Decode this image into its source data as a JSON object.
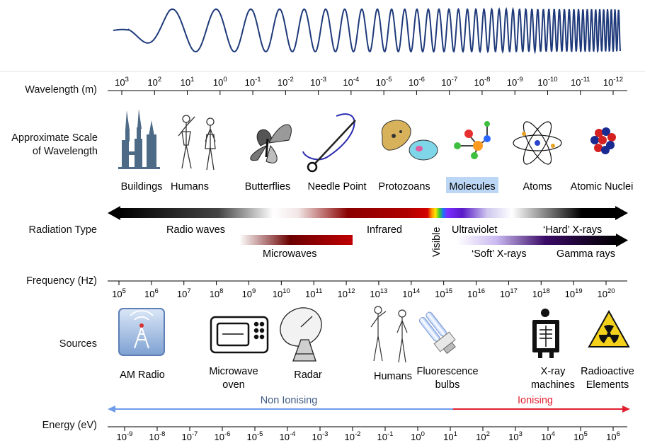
{
  "rows": {
    "wavelength": "Wavelength (m)",
    "scale_line1": "Approximate Scale",
    "scale_line2": "of Wavelength",
    "radiation": "Radiation Type",
    "frequency": "Frequency (Hz)",
    "sources": "Sources",
    "energy": "Energy (eV)"
  },
  "wavelength_exponents": [
    "3",
    "2",
    "1",
    "0",
    "-1",
    "-2",
    "-3",
    "-4",
    "-5",
    "-6",
    "-7",
    "-8",
    "-9",
    "-10",
    "-11",
    "-12"
  ],
  "frequency_exponents": [
    "5",
    "6",
    "7",
    "8",
    "9",
    "10",
    "11",
    "12",
    "13",
    "14",
    "15",
    "16",
    "17",
    "18",
    "19",
    "20"
  ],
  "energy_exponents": [
    "-9",
    "-8",
    "-7",
    "-6",
    "-5",
    "-4",
    "-3",
    "-2",
    "-1",
    "0",
    "1",
    "2",
    "3",
    "4",
    "5",
    "6"
  ],
  "scale_items": [
    {
      "label": "Buildings",
      "icon": "buildings-icon"
    },
    {
      "label": "Humans",
      "icon": "humans-icon"
    },
    {
      "label": "Butterflies",
      "icon": "butterfly-icon"
    },
    {
      "label": "Needle Point",
      "icon": "needle-icon"
    },
    {
      "label": "Protozoans",
      "icon": "protozoan-icon"
    },
    {
      "label": "Molecules",
      "icon": "molecule-icon"
    },
    {
      "label": "Atoms",
      "icon": "atom-icon"
    },
    {
      "label": "Atomic Nuclei",
      "icon": "nucleus-icon"
    }
  ],
  "radiation": {
    "radio": "Radio waves",
    "infrared": "Infrared",
    "visible": "Visible",
    "ultraviolet": "Ultraviolet",
    "hard_xrays": "‘Hard’ X-rays",
    "microwaves": "Microwaves",
    "soft_xrays": "‘Soft’ X-rays",
    "gamma": "Gamma rays"
  },
  "sources": [
    {
      "line1": "AM Radio",
      "line2": "",
      "icon": "radio-tower-icon"
    },
    {
      "line1": "Microwave",
      "line2": "oven",
      "icon": "microwave-icon"
    },
    {
      "line1": "Radar",
      "line2": "",
      "icon": "radar-dish-icon"
    },
    {
      "line1": "Humans",
      "line2": "",
      "icon": "humans-icon"
    },
    {
      "line1": "Fluorescence",
      "line2": "bulbs",
      "icon": "bulb-icon"
    },
    {
      "line1": "X-ray",
      "line2": "machines",
      "icon": "xray-machine-icon"
    },
    {
      "line1": "Radioactive",
      "line2": "Elements",
      "icon": "radiation-icon"
    }
  ],
  "energy": {
    "non_ionising": "Non Ionising",
    "ionising": "Ionising"
  },
  "colors": {
    "wave": "#1f3a7a",
    "non_ionising": "#6e9bea",
    "ionising": "#e02030",
    "highlight": "#bcd7f5"
  }
}
